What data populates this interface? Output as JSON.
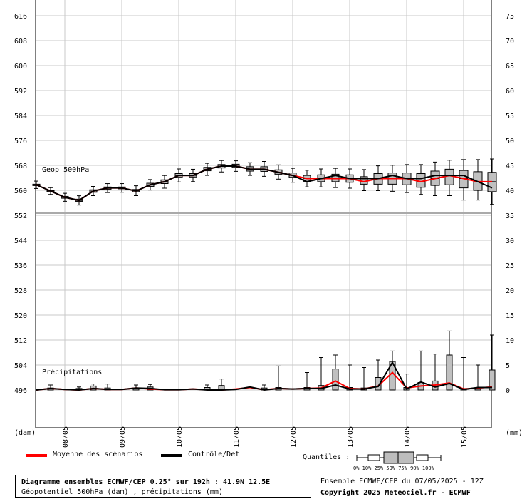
{
  "chart_data": {
    "type": "box",
    "xlabel_left": "(dam)",
    "xlabel_right": "(mm)",
    "dates": [
      "08/05",
      "09/05",
      "10/05",
      "11/05",
      "12/05",
      "13/05",
      "14/05",
      "15/05"
    ],
    "left_ticks": [
      496,
      504,
      512,
      520,
      528,
      536,
      544,
      552,
      560,
      568,
      576,
      584,
      592,
      600,
      608,
      616
    ],
    "right_ticks_upper": [
      35,
      40,
      45,
      50,
      55,
      60,
      65,
      70,
      75
    ],
    "right_ticks_lower": [
      0,
      5,
      10,
      15,
      20,
      25,
      30
    ],
    "annotation_geop": "Geop 500hPa",
    "annotation_precip": "Précipitations",
    "hours": [
      0,
      6,
      12,
      18,
      24,
      30,
      36,
      42,
      48,
      54,
      60,
      66,
      72,
      78,
      84,
      90,
      96,
      102,
      108,
      114,
      120,
      126,
      132,
      138,
      144,
      150,
      156,
      162,
      168,
      174,
      180,
      186,
      192
    ],
    "geop_mean": [
      562,
      560,
      558,
      557,
      560,
      561,
      561,
      560,
      562,
      563,
      565,
      565,
      567,
      568,
      568,
      567,
      567,
      566,
      565,
      564,
      564,
      564,
      564,
      563,
      564,
      564,
      564,
      563,
      564,
      565,
      564,
      563,
      563
    ],
    "geop_control": [
      562,
      560,
      558,
      557,
      560,
      561,
      561,
      560,
      562,
      563,
      565,
      565,
      567,
      568,
      568,
      567,
      567,
      566,
      565,
      563,
      564,
      565,
      564,
      564,
      564,
      565,
      564,
      564,
      565,
      565,
      565,
      563,
      561
    ],
    "geop_boxes": [
      {
        "p10": 561.5,
        "p25": 561.8,
        "p50": 562,
        "p75": 562.2,
        "p90": 562.5
      },
      {
        "p10": 559.6,
        "p25": 559.8,
        "p50": 560,
        "p75": 560.2,
        "p90": 560.4
      },
      {
        "p10": 557.4,
        "p25": 557.7,
        "p50": 558,
        "p75": 558.3,
        "p90": 558.6
      },
      {
        "p10": 556.2,
        "p25": 556.7,
        "p50": 557,
        "p75": 557.4,
        "p90": 557.8
      },
      {
        "p10": 559.2,
        "p25": 559.6,
        "p50": 560,
        "p75": 560.4,
        "p90": 560.8
      },
      {
        "p10": 560.2,
        "p25": 560.6,
        "p50": 561,
        "p75": 561.3,
        "p90": 561.7
      },
      {
        "p10": 560.3,
        "p25": 560.7,
        "p50": 561,
        "p75": 561.3,
        "p90": 561.7
      },
      {
        "p10": 559.2,
        "p25": 559.7,
        "p50": 560,
        "p75": 560.5,
        "p90": 561.0
      },
      {
        "p10": 561.0,
        "p25": 561.5,
        "p50": 562,
        "p75": 562.5,
        "p90": 563.0
      },
      {
        "p10": 561.6,
        "p25": 562.4,
        "p50": 563,
        "p75": 563.6,
        "p90": 564.3
      },
      {
        "p10": 563.6,
        "p25": 564.4,
        "p50": 565,
        "p75": 565.6,
        "p90": 566.4
      },
      {
        "p10": 563.7,
        "p25": 564.5,
        "p50": 565,
        "p75": 565.6,
        "p90": 566.3
      },
      {
        "p10": 565.7,
        "p25": 566.5,
        "p50": 567,
        "p75": 567.6,
        "p90": 568.2
      },
      {
        "p10": 566.8,
        "p25": 567.4,
        "p50": 568,
        "p75": 568.5,
        "p90": 569.1
      },
      {
        "p10": 567.0,
        "p25": 567.6,
        "p50": 568,
        "p75": 568.6,
        "p90": 569.0
      },
      {
        "p10": 565.7,
        "p25": 566.4,
        "p50": 567,
        "p75": 567.8,
        "p90": 568.4
      },
      {
        "p10": 565.4,
        "p25": 566.3,
        "p50": 567,
        "p75": 567.8,
        "p90": 568.8
      },
      {
        "p10": 564.5,
        "p25": 565.4,
        "p50": 566,
        "p75": 566.8,
        "p90": 567.7
      },
      {
        "p10": 563.5,
        "p25": 564.4,
        "p50": 565,
        "p75": 565.8,
        "p90": 566.6
      },
      {
        "p10": 562.0,
        "p25": 563.0,
        "p50": 564,
        "p75": 565.0,
        "p90": 566.0
      },
      {
        "p10": 562.0,
        "p25": 563.0,
        "p50": 564,
        "p75": 565.2,
        "p90": 566.4
      },
      {
        "p10": 561.8,
        "p25": 563.0,
        "p50": 564,
        "p75": 565.4,
        "p90": 566.6
      },
      {
        "p10": 561.6,
        "p25": 562.8,
        "p50": 564,
        "p75": 565.2,
        "p90": 566.4
      },
      {
        "p10": 560.8,
        "p25": 562.2,
        "p50": 563,
        "p75": 564.6,
        "p90": 566.2
      },
      {
        "p10": 560.8,
        "p25": 562.2,
        "p50": 564,
        "p75": 565.6,
        "p90": 567.4
      },
      {
        "p10": 560.6,
        "p25": 562.2,
        "p50": 564,
        "p75": 565.8,
        "p90": 567.6
      },
      {
        "p10": 560.2,
        "p25": 562.0,
        "p50": 564,
        "p75": 565.8,
        "p90": 567.8
      },
      {
        "p10": 559.6,
        "p25": 561.2,
        "p50": 563,
        "p75": 565.6,
        "p90": 567.8
      },
      {
        "p10": 559.2,
        "p25": 561.8,
        "p50": 564,
        "p75": 566.4,
        "p90": 568.6
      },
      {
        "p10": 559.2,
        "p25": 562.0,
        "p50": 565,
        "p75": 567.0,
        "p90": 569.2
      },
      {
        "p10": 557.8,
        "p25": 561.0,
        "p50": 564,
        "p75": 566.6,
        "p90": 569.4
      },
      {
        "p10": 557.8,
        "p25": 560.2,
        "p50": 563,
        "p75": 566.2,
        "p90": 569.4
      },
      {
        "p10": 556.4,
        "p25": 559.8,
        "p50": 563,
        "p75": 566.0,
        "p90": 569.6
      }
    ],
    "precip_mean": [
      0,
      0.3,
      0.1,
      0.1,
      0.4,
      0.2,
      0.05,
      0.05,
      0.2,
      0.05,
      0,
      0.2,
      0.5,
      0.05,
      0.3,
      0.2,
      0.3,
      0.4,
      1.8,
      0.3,
      0.2,
      0.8,
      3.5,
      0.4,
      0.8,
      1.0,
      1.4,
      0.2,
      0.4,
      0.6
    ],
    "precip_control": [
      0,
      0.3,
      0.1,
      0.1,
      0.4,
      0.3,
      0.05,
      0.05,
      0.2,
      0.0,
      0,
      0.1,
      0.6,
      0.0,
      0.3,
      0.2,
      0.3,
      0.3,
      1.0,
      0.2,
      0.2,
      0.7,
      5.5,
      0.2,
      1.6,
      0.6,
      1.3,
      0.1,
      0.5,
      0.5
    ],
    "precip_boxes": [
      {
        "h": 6,
        "p75": 0.4,
        "p90": 1.0
      },
      {
        "h": 18,
        "p75": 0.3,
        "p90": 0.6
      },
      {
        "h": 24,
        "p75": 0.8,
        "p90": 1.2
      },
      {
        "h": 30,
        "p75": 0.4,
        "p90": 1.2
      },
      {
        "h": 42,
        "p75": 0.4,
        "p90": 1.0
      },
      {
        "h": 48,
        "p75": 0.6,
        "p90": 1.1
      },
      {
        "h": 72,
        "p75": 0.5,
        "p90": 1.0
      },
      {
        "h": 78,
        "p75": 0.9,
        "p90": 2.2
      },
      {
        "h": 96,
        "p75": 0.4,
        "p90": 1.0
      },
      {
        "h": 102,
        "p75": 0.5,
        "p90": 4.8
      },
      {
        "h": 114,
        "p75": 0.5,
        "p90": 3.5
      },
      {
        "h": 120,
        "p75": 0.9,
        "p90": 6.5
      },
      {
        "h": 126,
        "p75": 4.2,
        "p90": 7.0
      },
      {
        "h": 132,
        "p75": 0.5,
        "p90": 5.0
      },
      {
        "h": 138,
        "p75": 0.4,
        "p90": 4.5
      },
      {
        "h": 144,
        "p75": 2.5,
        "p90": 6.0
      },
      {
        "h": 150,
        "p75": 5.7,
        "p90": 7.8
      },
      {
        "h": 156,
        "p75": 0.5,
        "p90": 3.2
      },
      {
        "h": 162,
        "p75": 1.5,
        "p90": 7.8
      },
      {
        "h": 168,
        "p75": 1.8,
        "p90": 7.2
      },
      {
        "h": 174,
        "p75": 7.0,
        "p90": 11.8
      },
      {
        "h": 180,
        "p75": 0.3,
        "p90": 6.5
      },
      {
        "h": 186,
        "p75": 0.4,
        "p90": 5.0
      },
      {
        "h": 192,
        "p75": 4.0,
        "p90": 11.0
      }
    ]
  },
  "legend": {
    "mean_label": "Moyenne des scénarios",
    "mean_color": "#ff0000",
    "control_label": "Contrôle/Det",
    "control_color": "#000000"
  },
  "quantiles": {
    "label": "Quantiles :",
    "ticks": "0%  10% 25% 50% 75% 90% 100%"
  },
  "info": {
    "title": "Diagramme ensembles ECMWF/CEP 0.25° sur 192h : 41.9N 12.5E",
    "subtitle": "Géopotentiel 500hPa (dam) , précipitations (mm)",
    "run": "Ensemble ECMWF/CEP du 07/05/2025 - 12Z",
    "copyright": "Copyright 2025 Meteociel.fr - ECMWF"
  }
}
